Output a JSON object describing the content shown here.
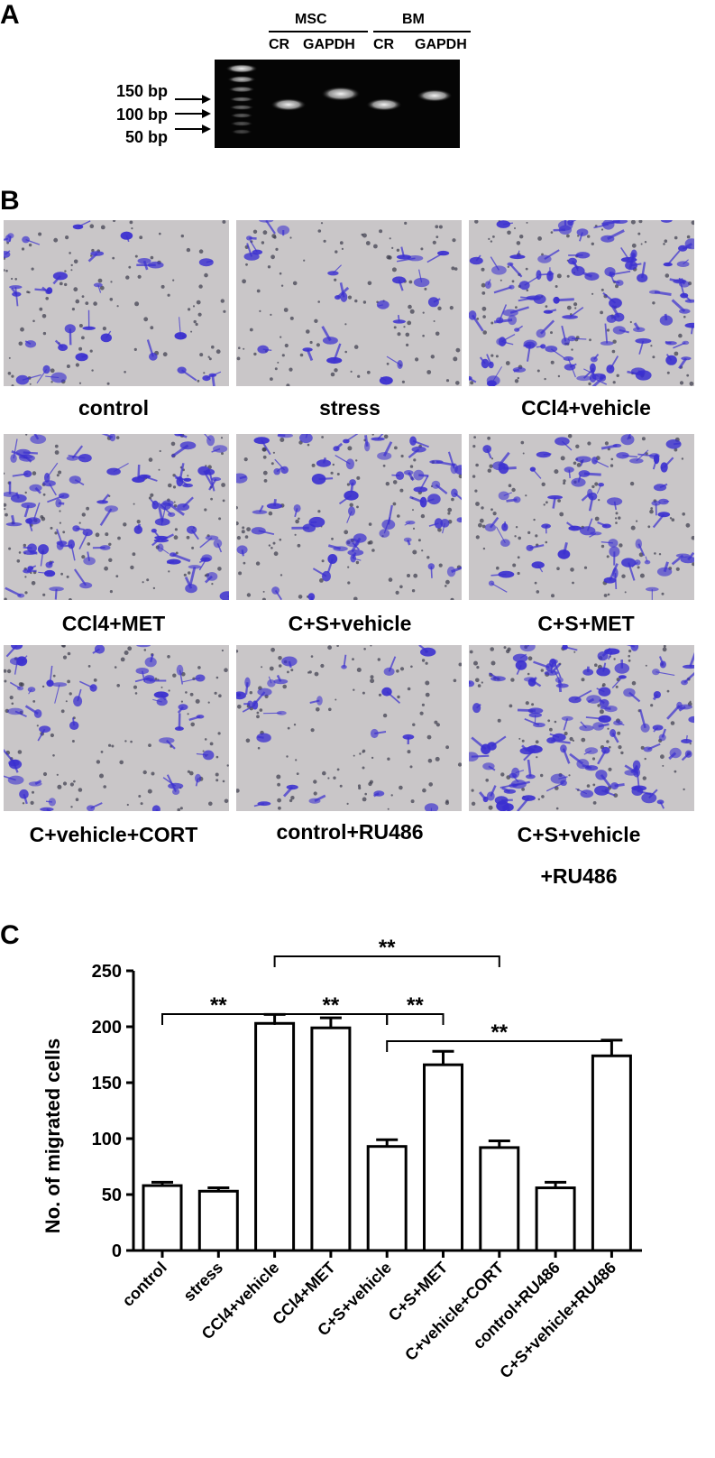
{
  "panels": {
    "a": "A",
    "b": "B",
    "c": "C"
  },
  "panel_a": {
    "group_msc": "MSC",
    "group_bm": "BM",
    "lane_labels": [
      "CR",
      "GAPDH",
      "CR",
      "GAPDH"
    ],
    "size_markers": [
      "150 bp",
      "100 bp",
      "50 bp"
    ]
  },
  "panel_b": {
    "labels": [
      "control",
      "stress",
      "CCl4+vehicle",
      "CCl4+MET",
      "C+S+vehicle",
      "C+S+MET",
      "C+vehicle+CORT",
      "control+RU486",
      "C+S+vehicle",
      "+RU486"
    ],
    "stain_color": "#3a2fd0"
  },
  "chart_data": {
    "type": "bar",
    "ylabel": "No. of migrated cells",
    "ylim": [
      0,
      250
    ],
    "yticks": [
      "0",
      "50",
      "100",
      "150",
      "200",
      "250"
    ],
    "categories": [
      "control",
      "stress",
      "CCl4+vehicle",
      "CCl4+MET",
      "C+S+vehicle",
      "C+S+MET",
      "C+vehicle+CORT",
      "control+RU486",
      "C+S+vehicle+RU486"
    ],
    "values": [
      58,
      53,
      203,
      199,
      93,
      166,
      92,
      56,
      174
    ],
    "errors": [
      3,
      3,
      8,
      9,
      6,
      12,
      6,
      5,
      14
    ],
    "significance": [
      {
        "from": 0,
        "to": 2,
        "label": "**"
      },
      {
        "from": 2,
        "to": 4,
        "label": "**"
      },
      {
        "from": 2,
        "to": 6,
        "label": "**"
      },
      {
        "from": 4,
        "to": 5,
        "label": "**"
      },
      {
        "from": 4,
        "to": 8,
        "label": "**"
      }
    ],
    "bar_fill": "#ffffff",
    "bar_stroke": "#000000"
  }
}
